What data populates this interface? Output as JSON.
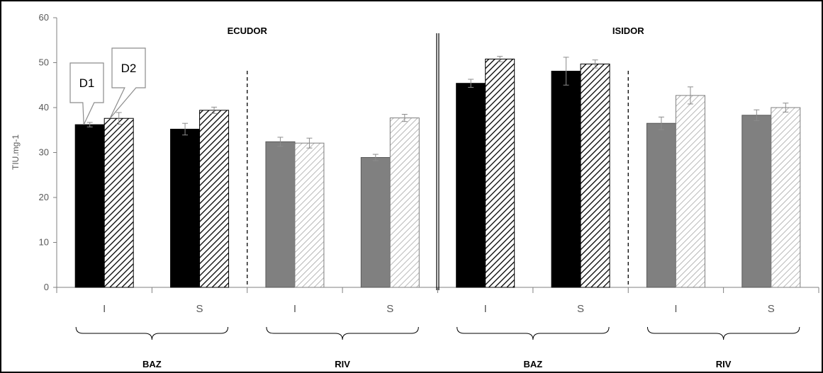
{
  "chart_data": {
    "type": "bar",
    "ylabel": "TIU.mg-1",
    "ylim": [
      0,
      60
    ],
    "yticks": [
      0,
      10,
      20,
      30,
      40,
      50,
      60
    ],
    "grid": false,
    "varieties": [
      "ECUDOR",
      "ISIDOR"
    ],
    "regions": [
      "BAZ",
      "RIV",
      "BAZ",
      "RIV"
    ],
    "categories": [
      "I",
      "S",
      "I",
      "S",
      "I",
      "S",
      "I",
      "S"
    ],
    "series": [
      {
        "name": "D1",
        "values": [
          36.2,
          35.2,
          32.4,
          28.9,
          45.4,
          48.1,
          36.5,
          38.3
        ],
        "errors": [
          0.5,
          1.3,
          1.0,
          0.7,
          0.9,
          3.1,
          1.4,
          1.2
        ]
      },
      {
        "name": "D2",
        "values": [
          37.6,
          39.4,
          32.1,
          37.7,
          50.8,
          49.7,
          42.7,
          40.0
        ],
        "errors": [
          1.3,
          0.7,
          1.1,
          0.8,
          0.6,
          0.9,
          1.9,
          1.0
        ]
      }
    ],
    "colors": {
      "d1_baz": "#000000",
      "d1_riv": "#808080",
      "d2_baz_hatch": "#000000",
      "d2_riv_hatch": "#a6a6a6",
      "error_bar": "#8c8c8c",
      "axis": "#808080"
    }
  }
}
